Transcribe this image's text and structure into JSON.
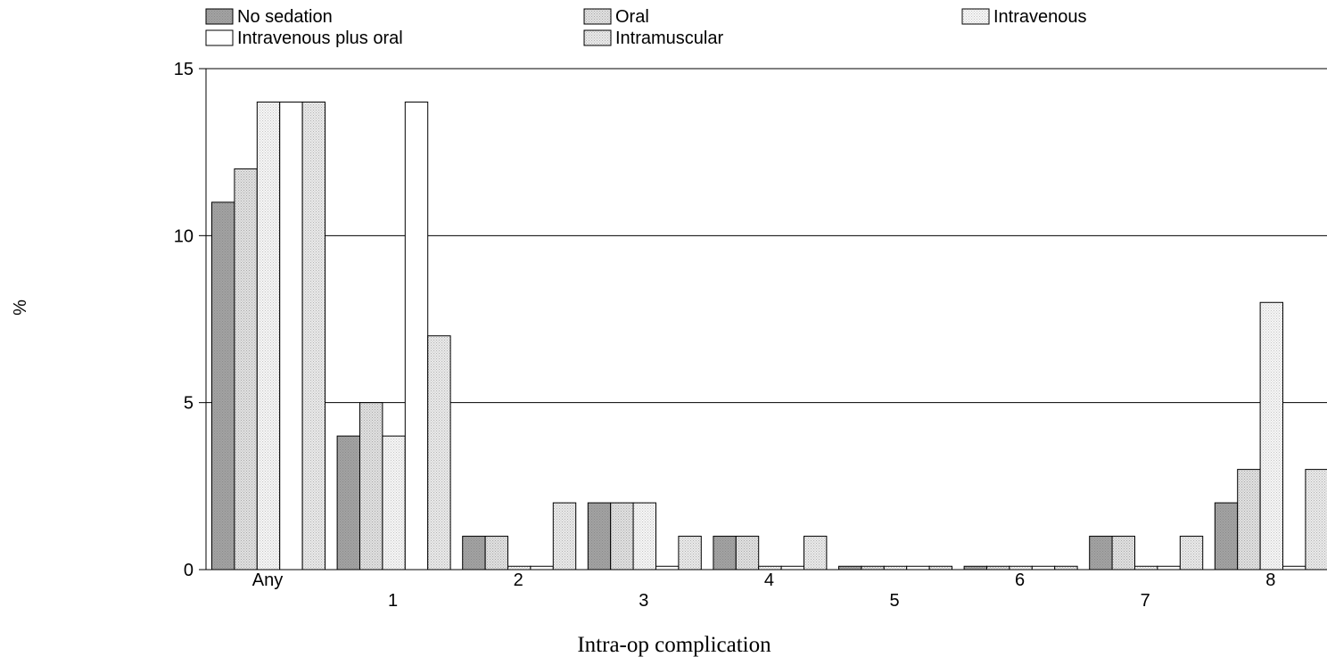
{
  "chart_data": {
    "type": "bar",
    "title": "",
    "xlabel": "Intra-op complication",
    "ylabel": "%",
    "ylim": [
      0,
      15
    ],
    "yticks": [
      0,
      5,
      10,
      15
    ],
    "grid": true,
    "legend_position": "top",
    "categories": [
      "Any",
      "1",
      "2",
      "3",
      "4",
      "5",
      "6",
      "7",
      "8"
    ],
    "series": [
      {
        "name": "No sedation",
        "color": "#9e9e9e",
        "pattern": "solid-dark",
        "values": [
          11,
          4,
          1,
          2,
          1,
          0.1,
          0.1,
          1,
          2
        ]
      },
      {
        "name": "Oral",
        "color": "#cfcfcf",
        "pattern": "dots-medium",
        "values": [
          12,
          5,
          1,
          2,
          1,
          0.1,
          0.1,
          1,
          3
        ]
      },
      {
        "name": "Intravenous",
        "color": "#eeeeee",
        "pattern": "dots-light",
        "values": [
          14,
          4,
          0.1,
          2,
          0.1,
          0.1,
          0.1,
          0.1,
          8
        ]
      },
      {
        "name": "Intravenous plus oral",
        "color": "#ffffff",
        "pattern": "white",
        "values": [
          14,
          14,
          0.1,
          0.1,
          0.1,
          0.1,
          0.1,
          0.1,
          0.1
        ]
      },
      {
        "name": "Intramuscular",
        "color": "#dddddd",
        "pattern": "dots-medium-light",
        "values": [
          14,
          7,
          2,
          1,
          1,
          0.1,
          0.1,
          1,
          3
        ]
      }
    ]
  }
}
